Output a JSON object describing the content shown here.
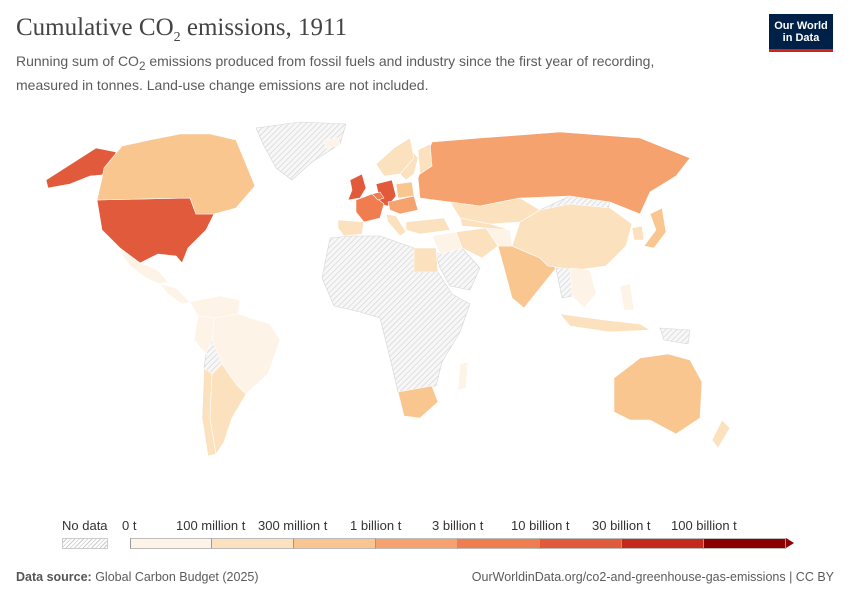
{
  "title": {
    "main": "Cumulative CO",
    "sub": "2",
    "tail": " emissions, 1911"
  },
  "subtitle": {
    "line1a": "Running sum of CO",
    "line1sub": "2",
    "line1b": " emissions produced from fossil fuels and industry since the first year of recording, measured in tonnes. Land-use change emissions are not included."
  },
  "logo": {
    "line1": "Our World",
    "line2": "in Data"
  },
  "legend": {
    "no_data": "No data",
    "bins": [
      {
        "label": "0 t",
        "color": "#fdf3e7"
      },
      {
        "label": "100 million t",
        "color": "#fbe1bd"
      },
      {
        "label": "300 million t",
        "color": "#f9c68f"
      },
      {
        "label": "1 billion t",
        "color": "#f5a26f"
      },
      {
        "label": "3 billion t",
        "color": "#ef7d4f"
      },
      {
        "label": "10 billion t",
        "color": "#e25a3c"
      },
      {
        "label": "30 billion t",
        "color": "#c5291d"
      },
      {
        "label": "100 billion t",
        "color": "#8b0000"
      }
    ]
  },
  "footer": {
    "source_label": "Data source:",
    "source": " Global Carbon Budget (2025)",
    "url": "OurWorldinData.org/co2-and-greenhouse-gas-emissions | CC BY"
  },
  "map_data": {
    "projection": "equirectangular",
    "year": 1911,
    "regions": [
      {
        "name": "United States",
        "bin": 5
      },
      {
        "name": "Alaska",
        "bin": 5
      },
      {
        "name": "United Kingdom",
        "bin": 5
      },
      {
        "name": "Germany",
        "bin": 5
      },
      {
        "name": "France",
        "bin": 4
      },
      {
        "name": "Belgium",
        "bin": 4
      },
      {
        "name": "Russia",
        "bin": 3
      },
      {
        "name": "Austria-Hungary region",
        "bin": 3
      },
      {
        "name": "Canada",
        "bin": 2
      },
      {
        "name": "Australia",
        "bin": 2
      },
      {
        "name": "India",
        "bin": 2
      },
      {
        "name": "Japan",
        "bin": 2
      },
      {
        "name": "Poland",
        "bin": 2
      },
      {
        "name": "South Africa",
        "bin": 2
      },
      {
        "name": "Kazakhstan",
        "bin": 1
      },
      {
        "name": "Central Asia",
        "bin": 1
      },
      {
        "name": "Iran",
        "bin": 1
      },
      {
        "name": "Turkey",
        "bin": 1
      },
      {
        "name": "Italy",
        "bin": 1
      },
      {
        "name": "Spain",
        "bin": 1
      },
      {
        "name": "Sweden",
        "bin": 1
      },
      {
        "name": "Finland",
        "bin": 1
      },
      {
        "name": "Scandinavia",
        "bin": 1
      },
      {
        "name": "China",
        "bin": 1
      },
      {
        "name": "Korea",
        "bin": 1
      },
      {
        "name": "Egypt",
        "bin": 1
      },
      {
        "name": "New Zealand",
        "bin": 1
      },
      {
        "name": "Chile",
        "bin": 1
      },
      {
        "name": "Argentina",
        "bin": 1
      },
      {
        "name": "Indonesia",
        "bin": 1
      },
      {
        "name": "Mexico",
        "bin": 0
      },
      {
        "name": "Central America",
        "bin": 0
      },
      {
        "name": "Brazil",
        "bin": 0
      },
      {
        "name": "Northern South America",
        "bin": 0
      },
      {
        "name": "Peru",
        "bin": 0
      },
      {
        "name": "Middle East",
        "bin": 0
      },
      {
        "name": "Afghanistan",
        "bin": 0
      },
      {
        "name": "Southeast Asia",
        "bin": 0
      },
      {
        "name": "Philippines",
        "bin": 0
      },
      {
        "name": "Iceland",
        "bin": 0
      },
      {
        "name": "Madagascar",
        "bin": 0
      },
      {
        "name": "Greenland",
        "bin": -1
      },
      {
        "name": "Africa (most)",
        "bin": -1
      },
      {
        "name": "Mongolia",
        "bin": -1
      },
      {
        "name": "Arabian Peninsula",
        "bin": -1
      },
      {
        "name": "Bolivia",
        "bin": -1
      },
      {
        "name": "Papua New Guinea",
        "bin": -1
      },
      {
        "name": "Myanmar",
        "bin": -1
      }
    ]
  }
}
